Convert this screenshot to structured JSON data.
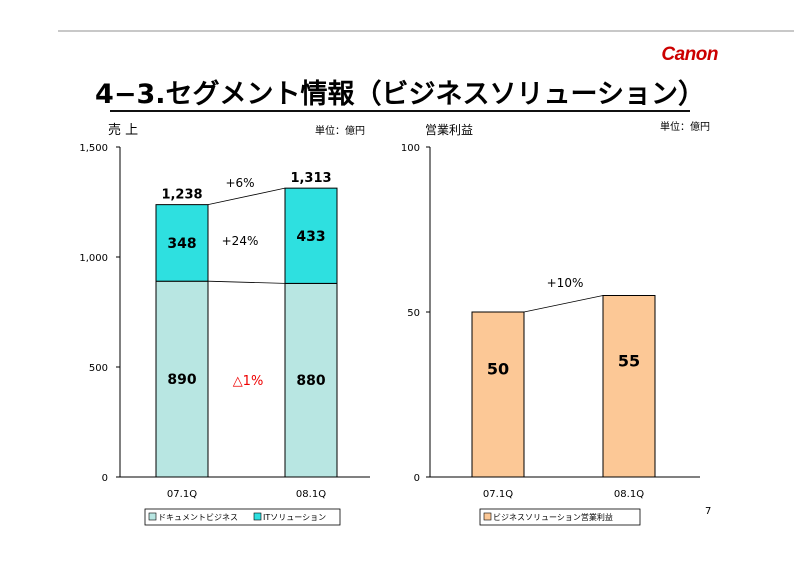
{
  "logo": "Canon",
  "slide_title": "4−3.セグメント情報（ビジネスソリューション）",
  "page_number": "7",
  "colors": {
    "document": "#b8e6e2",
    "it": "#2ee0e0",
    "business": "#fcc896",
    "accent_red": "#ee0000"
  },
  "chart_data": [
    {
      "type": "bar",
      "stacked": true,
      "title": "売 上",
      "unit_label": "単位：億円",
      "categories": [
        "07.1Q",
        "08.1Q"
      ],
      "ylim": [
        0,
        1500
      ],
      "yticks": [
        "0",
        "500",
        "1,000",
        "1,500"
      ],
      "series": [
        {
          "name": "ドキュメントビジネス",
          "values": [
            890,
            880
          ],
          "color": "#b8e6e2"
        },
        {
          "name": "ITソリューション",
          "values": [
            348,
            433
          ],
          "color": "#2ee0e0"
        }
      ],
      "totals": [
        "1,238",
        "1,313"
      ],
      "annotations": {
        "total_change": "+6%",
        "it_change": "+24%",
        "document_change": "△1%"
      },
      "legend": "bottom",
      "grid": false
    },
    {
      "type": "bar",
      "title": "営業利益",
      "unit_label": "単位：億円",
      "categories": [
        "07.1Q",
        "08.1Q"
      ],
      "ylim": [
        0,
        100
      ],
      "yticks": [
        "0",
        "50",
        "100"
      ],
      "series": [
        {
          "name": "ビジネスソリューション営業利益",
          "values": [
            50,
            55
          ],
          "color": "#fcc896"
        }
      ],
      "annotations": {
        "change": "+10%"
      },
      "legend": "bottom",
      "grid": false
    }
  ]
}
